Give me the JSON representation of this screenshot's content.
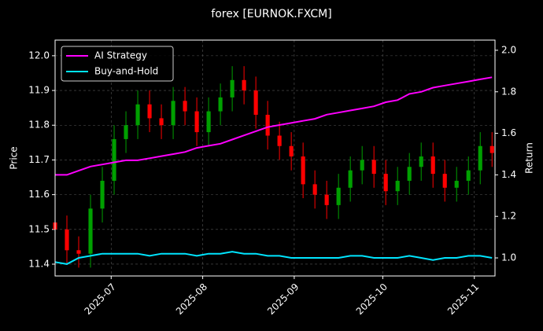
{
  "chart_data": {
    "type": "candlestick",
    "title": "forex [EURNOK.FXCM]",
    "y_label": "Price",
    "y2_label": "Return",
    "x": [
      "2025-06-12",
      "2025-06-16",
      "2025-06-20",
      "2025-06-24",
      "2025-06-28",
      "2025-07-02",
      "2025-07-06",
      "2025-07-10",
      "2025-07-14",
      "2025-07-18",
      "2025-07-22",
      "2025-07-26",
      "2025-07-30",
      "2025-08-03",
      "2025-08-07",
      "2025-08-11",
      "2025-08-15",
      "2025-08-19",
      "2025-08-23",
      "2025-08-27",
      "2025-08-31",
      "2025-09-04",
      "2025-09-08",
      "2025-09-12",
      "2025-09-16",
      "2025-09-20",
      "2025-09-24",
      "2025-09-28",
      "2025-10-02",
      "2025-10-06",
      "2025-10-10",
      "2025-10-14",
      "2025-10-18",
      "2025-10-22",
      "2025-10-26",
      "2025-10-30",
      "2025-11-03",
      "2025-11-07"
    ],
    "open": [
      11.52,
      11.5,
      11.44,
      11.43,
      11.56,
      11.64,
      11.76,
      11.8,
      11.86,
      11.82,
      11.8,
      11.87,
      11.84,
      11.78,
      11.84,
      11.88,
      11.93,
      11.9,
      11.83,
      11.77,
      11.74,
      11.71,
      11.63,
      11.6,
      11.57,
      11.62,
      11.67,
      11.7,
      11.66,
      11.61,
      11.64,
      11.68,
      11.71,
      11.66,
      11.62,
      11.64,
      11.67,
      11.74
    ],
    "high": [
      11.56,
      11.54,
      11.48,
      11.6,
      11.68,
      11.8,
      11.84,
      11.9,
      11.9,
      11.86,
      11.91,
      11.91,
      11.88,
      11.88,
      11.92,
      11.97,
      11.97,
      11.94,
      11.87,
      11.81,
      11.78,
      11.75,
      11.67,
      11.64,
      11.66,
      11.71,
      11.74,
      11.74,
      11.7,
      11.68,
      11.72,
      11.75,
      11.75,
      11.7,
      11.68,
      11.71,
      11.78,
      11.78
    ],
    "low": [
      11.46,
      11.4,
      11.39,
      11.39,
      11.52,
      11.6,
      11.72,
      11.76,
      11.78,
      11.76,
      11.76,
      11.8,
      11.74,
      11.74,
      11.8,
      11.84,
      11.86,
      11.79,
      11.73,
      11.7,
      11.67,
      11.59,
      11.56,
      11.53,
      11.53,
      11.58,
      11.63,
      11.62,
      11.57,
      11.57,
      11.6,
      11.64,
      11.62,
      11.58,
      11.58,
      11.6,
      11.63,
      11.68
    ],
    "close": [
      11.5,
      11.44,
      11.43,
      11.56,
      11.64,
      11.76,
      11.8,
      11.86,
      11.82,
      11.8,
      11.87,
      11.84,
      11.78,
      11.84,
      11.88,
      11.93,
      11.9,
      11.83,
      11.77,
      11.74,
      11.71,
      11.63,
      11.6,
      11.57,
      11.62,
      11.67,
      11.7,
      11.66,
      11.61,
      11.64,
      11.68,
      11.71,
      11.66,
      11.62,
      11.64,
      11.67,
      11.74,
      11.72
    ],
    "up_color": "#00a000",
    "down_color": "#ff0000",
    "series": [
      {
        "name": "AI Strategy",
        "color": "#ff00ff",
        "axis": "y2",
        "values": [
          1.4,
          1.4,
          1.42,
          1.44,
          1.45,
          1.46,
          1.47,
          1.47,
          1.48,
          1.49,
          1.5,
          1.51,
          1.53,
          1.54,
          1.55,
          1.57,
          1.59,
          1.61,
          1.63,
          1.64,
          1.65,
          1.66,
          1.67,
          1.69,
          1.7,
          1.71,
          1.72,
          1.73,
          1.75,
          1.76,
          1.79,
          1.8,
          1.82,
          1.83,
          1.84,
          1.85,
          1.86,
          1.87
        ]
      },
      {
        "name": "Buy-and-Hold",
        "color": "#00e5ff",
        "axis": "y2",
        "values": [
          0.98,
          0.97,
          1.0,
          1.01,
          1.02,
          1.02,
          1.02,
          1.02,
          1.01,
          1.02,
          1.02,
          1.02,
          1.01,
          1.02,
          1.02,
          1.03,
          1.02,
          1.02,
          1.01,
          1.01,
          1.0,
          1.0,
          1.0,
          1.0,
          1.0,
          1.01,
          1.01,
          1.0,
          1.0,
          1.0,
          1.01,
          1.0,
          0.99,
          1.0,
          1.0,
          1.01,
          1.01,
          1.0
        ]
      }
    ],
    "xlim": [
      "2025-06-12",
      "2025-11-08"
    ],
    "xticks": [
      {
        "value": "2025-07-01",
        "label": "2025-07"
      },
      {
        "value": "2025-08-01",
        "label": "2025-08"
      },
      {
        "value": "2025-09-01",
        "label": "2025-09"
      },
      {
        "value": "2025-10-01",
        "label": "2025-10"
      },
      {
        "value": "2025-11-01",
        "label": "2025-11"
      }
    ],
    "ylim": [
      11.366,
      12.045
    ],
    "yticks": [
      11.4,
      11.5,
      11.6,
      11.7,
      11.8,
      11.9,
      {
        "value": 12,
        "label": "12.0"
      }
    ],
    "y2lim": [
      0.913,
      2.049
    ],
    "y2ticks": [
      {
        "value": 1,
        "label": "1.0"
      },
      1.2,
      1.4,
      1.6,
      1.8,
      {
        "value": 2,
        "label": "2.0"
      }
    ],
    "grid": true,
    "legend": "upper left"
  }
}
